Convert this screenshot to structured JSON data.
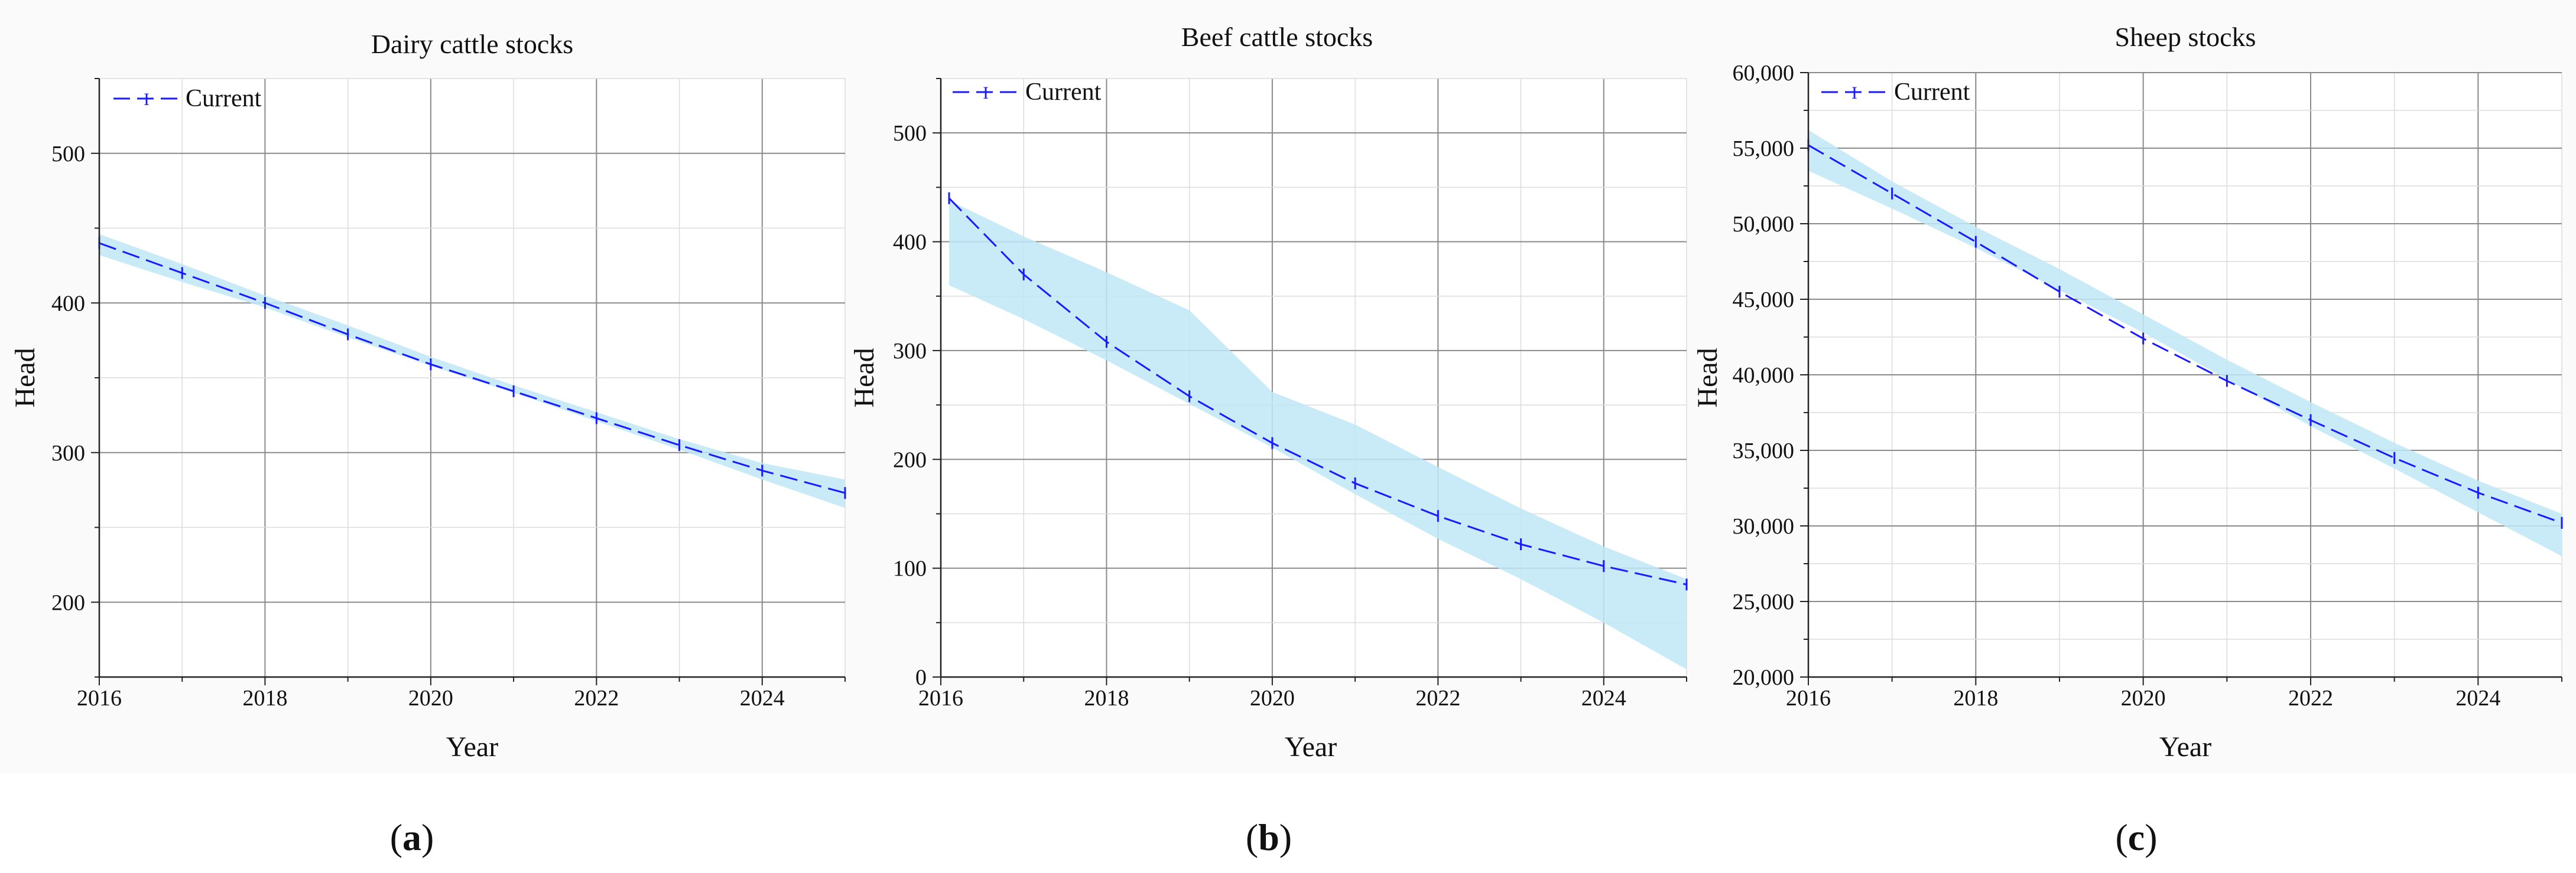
{
  "figure": {
    "panel_labels": [
      {
        "open": "(",
        "letter": "a",
        "close": ")"
      },
      {
        "open": "(",
        "letter": "b",
        "close": ")"
      },
      {
        "open": "(",
        "letter": "c",
        "close": ")"
      }
    ]
  },
  "colors": {
    "line": "#1a1aff",
    "band": "#bfe8f7",
    "grid_major": "#8a8a8a",
    "grid_minor": "#dcdcdc",
    "axis": "#222222"
  },
  "chart_data": [
    {
      "type": "line",
      "title": "Dairy cattle stocks",
      "xlabel": "Year",
      "ylabel": "Head",
      "xlim": [
        2016,
        2025
      ],
      "ylim": [
        150,
        550
      ],
      "xticks": [
        2016,
        2018,
        2020,
        2022,
        2024
      ],
      "xtick_labels": [
        "2016",
        "2018",
        "2020",
        "2022",
        "2024"
      ],
      "yticks": [
        200,
        300,
        400,
        500
      ],
      "ytick_labels": [
        "200",
        "300",
        "400",
        "500"
      ],
      "grid": true,
      "legend": {
        "position": "top-left",
        "entries": [
          {
            "marker": "I",
            "label": "Current"
          }
        ]
      },
      "series": [
        {
          "name": "Current",
          "x": [
            2016,
            2017,
            2018,
            2019,
            2020,
            2021,
            2022,
            2023,
            2024,
            2025
          ],
          "values": [
            440,
            420,
            400,
            379,
            359,
            341,
            323,
            305,
            288,
            273
          ],
          "band_lower": [
            432,
            414,
            397,
            377,
            358,
            340,
            321,
            302,
            282,
            263
          ],
          "band_upper": [
            446,
            426,
            405,
            385,
            364,
            345,
            327,
            309,
            293,
            282
          ]
        }
      ]
    },
    {
      "type": "line",
      "title": "Beef cattle stocks",
      "xlabel": "Year",
      "ylabel": "Head",
      "xlim": [
        2016,
        2025
      ],
      "ylim": [
        0,
        550
      ],
      "xticks": [
        2016,
        2018,
        2020,
        2022,
        2024
      ],
      "xtick_labels": [
        "2016",
        "2018",
        "2020",
        "2022",
        "2024"
      ],
      "yticks": [
        0,
        100,
        200,
        300,
        400,
        500
      ],
      "ytick_labels": [
        "0",
        "100",
        "200",
        "300",
        "400",
        "500"
      ],
      "grid": true,
      "legend": {
        "position": "top-left",
        "entries": [
          {
            "marker": "I",
            "label": "Current"
          }
        ]
      },
      "series": [
        {
          "name": "Current",
          "x": [
            2016.1,
            2017,
            2018,
            2019,
            2020,
            2021,
            2022,
            2023,
            2024,
            2025
          ],
          "values": [
            440,
            370,
            308,
            258,
            215,
            178,
            148,
            122,
            102,
            85
          ],
          "band_lower": [
            360,
            329,
            291,
            251,
            211,
            168,
            127,
            90,
            50,
            7
          ],
          "band_upper": [
            438,
            405,
            372,
            337,
            262,
            232,
            193,
            155,
            120,
            90
          ]
        }
      ]
    },
    {
      "type": "line",
      "title": "Sheep stocks",
      "xlabel": "Year",
      "ylabel": "Head",
      "xlim": [
        2016,
        2025
      ],
      "ylim": [
        20000,
        60000
      ],
      "xticks": [
        2016,
        2018,
        2020,
        2022,
        2024
      ],
      "xtick_labels": [
        "2016",
        "2018",
        "2020",
        "2022",
        "2024"
      ],
      "yticks": [
        20000,
        25000,
        30000,
        35000,
        40000,
        45000,
        50000,
        55000,
        60000
      ],
      "ytick_labels": [
        "20,000",
        "25,000",
        "30,000",
        "35,000",
        "40,000",
        "45,000",
        "50,000",
        "55,000",
        "60,000"
      ],
      "grid": true,
      "legend": {
        "position": "top-left",
        "entries": [
          {
            "marker": "I",
            "label": "Current"
          }
        ]
      },
      "series": [
        {
          "name": "Current",
          "x": [
            2016,
            2017,
            2018,
            2019,
            2020,
            2021,
            2022,
            2023,
            2024,
            2025
          ],
          "values": [
            55200,
            52000,
            48800,
            45500,
            42400,
            39600,
            37000,
            34500,
            32200,
            30200
          ],
          "band_lower": [
            53500,
            51000,
            48400,
            45600,
            42800,
            39700,
            36600,
            33800,
            30900,
            28000
          ],
          "band_upper": [
            56200,
            52800,
            49800,
            47000,
            44000,
            41000,
            38200,
            35500,
            33000,
            30800
          ]
        }
      ]
    }
  ]
}
